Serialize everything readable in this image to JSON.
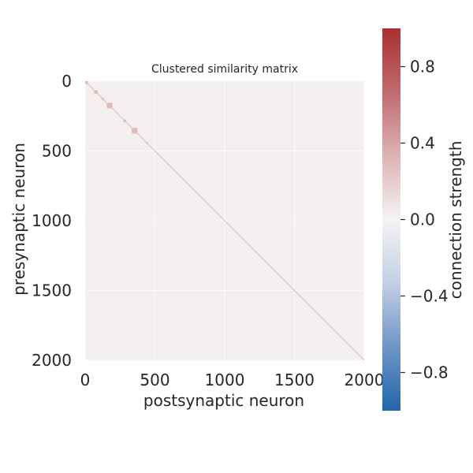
{
  "chart_data": {
    "type": "heatmap",
    "title": "Clustered similarity matrix",
    "xlabel": "postsynaptic neuron",
    "ylabel": "presynaptic neuron",
    "x_ticks": [
      0,
      500,
      1000,
      1500,
      2000
    ],
    "y_ticks": [
      0,
      500,
      1000,
      1500,
      2000
    ],
    "xlim": [
      0,
      2000
    ],
    "ylim": [
      2000,
      0
    ],
    "background_value": 0.02,
    "diagonal_value": 0.3,
    "clusters": [
      {
        "start": 0,
        "end": 20,
        "value": 0.3
      },
      {
        "start": 65,
        "end": 90,
        "value": 0.3
      },
      {
        "start": 118,
        "end": 135,
        "value": 0.3
      },
      {
        "start": 155,
        "end": 195,
        "value": 0.3
      },
      {
        "start": 275,
        "end": 292,
        "value": 0.3
      },
      {
        "start": 335,
        "end": 375,
        "value": 0.3
      },
      {
        "start": 440,
        "end": 452,
        "value": 0.3
      },
      {
        "start": 595,
        "end": 605,
        "value": 0.3
      }
    ],
    "colorbar": {
      "label": "connection strength",
      "range": [
        -1,
        1
      ],
      "ticks": [
        0.8,
        0.4,
        0.0,
        -0.4,
        -0.8
      ],
      "tick_labels": [
        "0.8",
        "0.4",
        "0.0",
        "−0.4",
        "−0.8"
      ],
      "colormap": "vlag",
      "color_stops": [
        "#2166ac",
        "#6f95c6",
        "#c3cfe4",
        "#f5f3f3",
        "#ddb3b5",
        "#c06a6f",
        "#a93030"
      ]
    },
    "grid": true
  }
}
